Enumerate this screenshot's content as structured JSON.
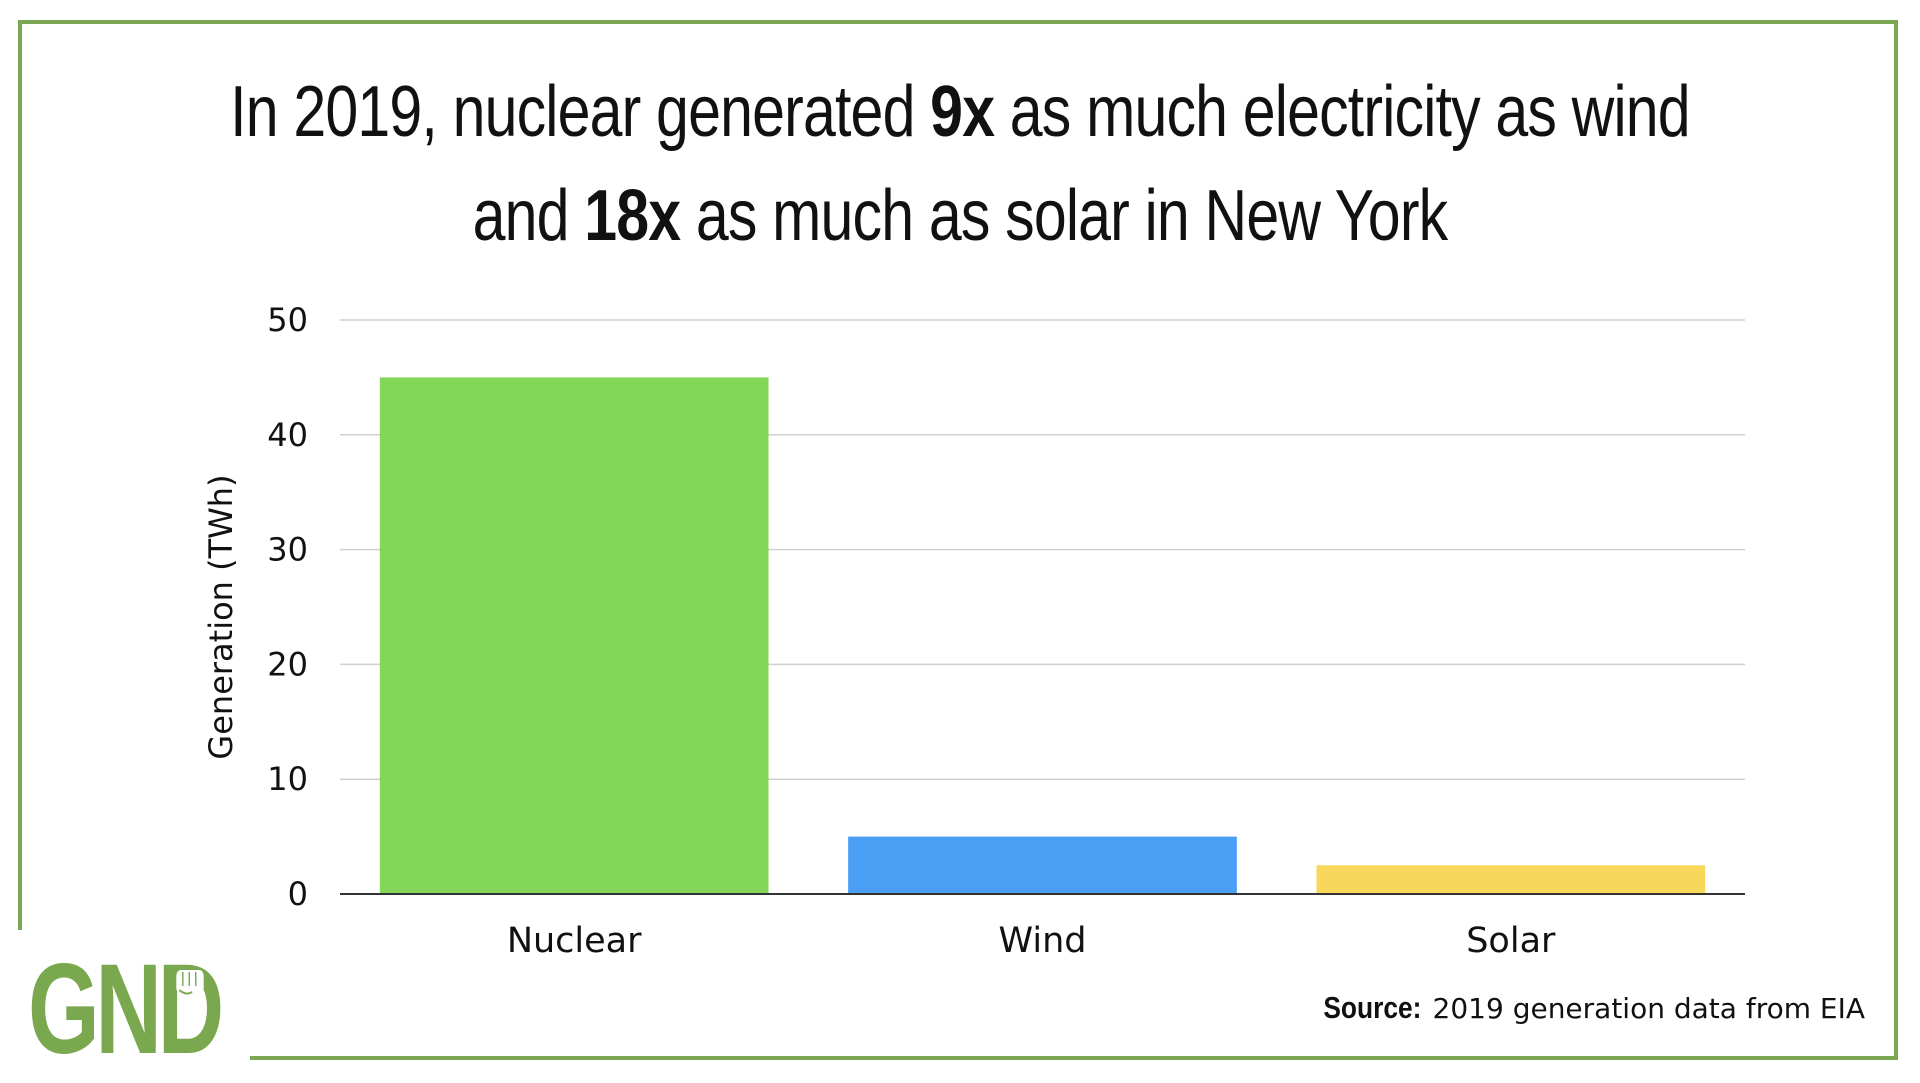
{
  "title": {
    "part1": "In 2019, nuclear generated ",
    "bold1": "9x",
    "part2": " as much electricity as wind and ",
    "bold2": "18x",
    "part3": " as much as solar in New York"
  },
  "chart_data": {
    "type": "bar",
    "categories": [
      "Nuclear",
      "Wind",
      "Solar"
    ],
    "values": [
      45,
      5,
      2.5
    ],
    "colors": [
      "#84d658",
      "#4a9ff5",
      "#f8d85a"
    ],
    "ylabel": "Generation (TWh)",
    "xlabel": "",
    "ylim": [
      0,
      50
    ],
    "yticks": [
      0,
      10,
      20,
      30,
      40,
      50
    ],
    "grid": true
  },
  "source": {
    "label": "Source:",
    "text": "2019 generation data from EIA"
  },
  "logo": {
    "text_gn": "GN",
    "text_d": "D",
    "icon": "raised-fist-icon",
    "color": "#7aa84e"
  },
  "colors": {
    "frame": "#7ba755",
    "grid": "#d0d0d0",
    "axis": "#333333"
  }
}
